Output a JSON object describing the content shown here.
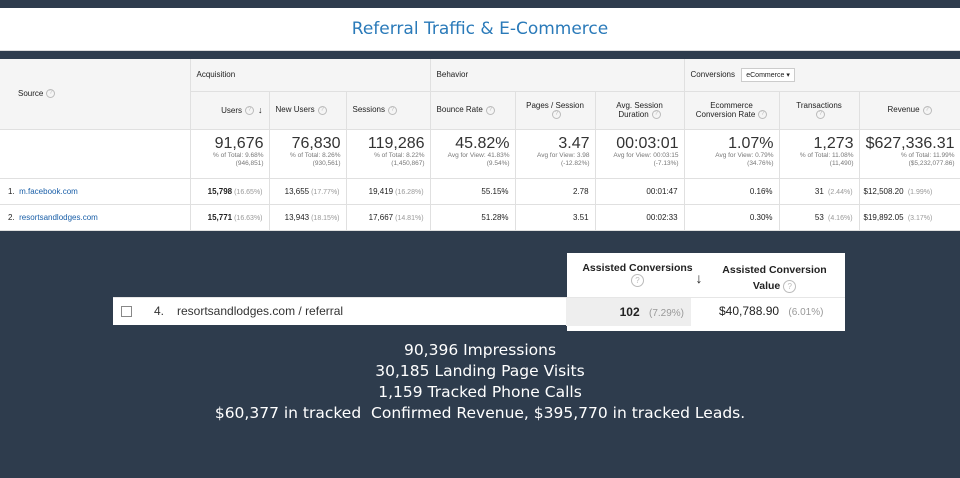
{
  "banner": {
    "title": "Referral Traffic & E-Commerce"
  },
  "table": {
    "source_label": "Source",
    "groups": {
      "acquisition": "Acquisition",
      "behavior": "Behavior",
      "conversions": "Conversions",
      "conversions_select": "eCommerce"
    },
    "columns": [
      "Users",
      "New Users",
      "Sessions",
      "Bounce Rate",
      "Pages / Session",
      "Avg. Session Duration",
      "Ecommerce Conversion Rate",
      "Transactions",
      "Revenue"
    ],
    "totals": [
      {
        "value": "91,676",
        "sub": "% of Total: 9.68% (946,851)"
      },
      {
        "value": "76,830",
        "sub": "% of Total: 8.26% (930,561)"
      },
      {
        "value": "119,286",
        "sub": "% of Total: 8.22% (1,450,867)"
      },
      {
        "value": "45.82%",
        "sub": "Avg for View: 41.83% (9.54%)"
      },
      {
        "value": "3.47",
        "sub": "Avg for View: 3.98 (-12.82%)"
      },
      {
        "value": "00:03:01",
        "sub": "Avg for View: 00:03:15 (-7.13%)"
      },
      {
        "value": "1.07%",
        "sub": "Avg for View: 0.79% (34.76%)"
      },
      {
        "value": "1,273",
        "sub": "% of Total: 11.08% (11,490)"
      },
      {
        "value": "$627,336.31",
        "sub": "% of Total: 11.99% ($5,232,077.86)"
      }
    ],
    "rows": [
      {
        "num": "1.",
        "source": "m.facebook.com",
        "users": "15,798",
        "users_pct": "(16.65%)",
        "new_users": "13,655",
        "new_users_pct": "(17.77%)",
        "sessions": "19,419",
        "sessions_pct": "(16.28%)",
        "bounce": "55.15%",
        "pages": "2.78",
        "duration": "00:01:47",
        "conv_rate": "0.16%",
        "transactions": "31",
        "transactions_pct": "(2.44%)",
        "revenue": "$12,508.20",
        "revenue_pct": "(1.99%)"
      },
      {
        "num": "2.",
        "source": "resortsandlodges.com",
        "users": "15,771",
        "users_pct": "(16.63%)",
        "new_users": "13,943",
        "new_users_pct": "(18.15%)",
        "sessions": "17,667",
        "sessions_pct": "(14.81%)",
        "bounce": "51.28%",
        "pages": "3.51",
        "duration": "00:02:33",
        "conv_rate": "0.30%",
        "transactions": "53",
        "transactions_pct": "(4.16%)",
        "revenue": "$19,892.05",
        "revenue_pct": "(3.17%)"
      }
    ]
  },
  "assisted": {
    "col1": "Assisted Conversions",
    "col2": "Assisted Conversion Value",
    "row": {
      "num": "4.",
      "source": "resortsandlodges.com / referral",
      "conversions": "102",
      "conversions_pct": "(7.29%)",
      "value": "$40,788.90",
      "value_pct": "(6.01%)"
    }
  },
  "caption": [
    "90,396 Impressions",
    "30,185 Landing Page Visits",
    "1,159 Tracked Phone Calls",
    "$60,377 in tracked  Confirmed Revenue, $395,770 in tracked Leads."
  ]
}
